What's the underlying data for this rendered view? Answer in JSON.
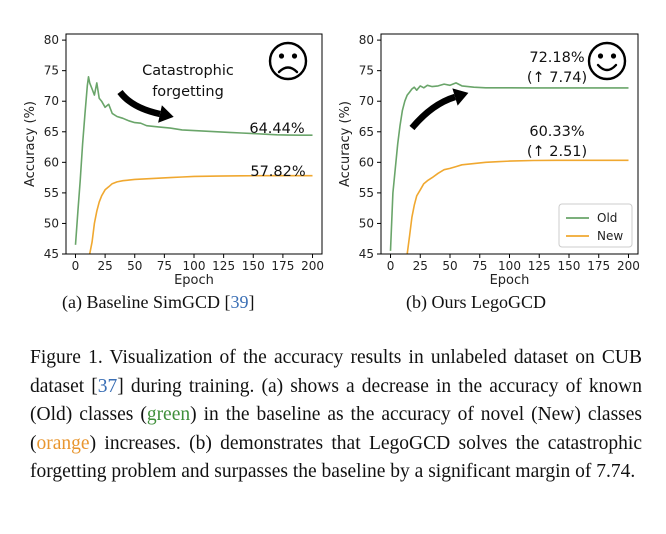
{
  "chart_data": [
    {
      "type": "line",
      "xlabel": "Epoch",
      "ylabel": "Accuracy (%)",
      "xlim": [
        -8,
        208
      ],
      "ylim": [
        45,
        81
      ],
      "xticks": [
        0,
        25,
        50,
        75,
        100,
        125,
        150,
        175,
        200
      ],
      "yticks": [
        45,
        50,
        55,
        60,
        65,
        70,
        75,
        80
      ],
      "grid": false,
      "series": [
        {
          "name": "Old",
          "color": "#6aa56a",
          "x": [
            0,
            2,
            4,
            6,
            8,
            10,
            11,
            12,
            14,
            16,
            18,
            20,
            22,
            25,
            28,
            31,
            35,
            40,
            45,
            50,
            55,
            60,
            70,
            80,
            90,
            100,
            110,
            120,
            130,
            140,
            150,
            160,
            170,
            180,
            190,
            200
          ],
          "y": [
            46.5,
            52,
            57,
            63,
            68,
            72.5,
            74,
            73,
            72,
            71,
            73,
            70.5,
            70,
            69,
            69.5,
            68,
            67.5,
            67.2,
            66.8,
            66.5,
            66.4,
            66,
            65.8,
            65.6,
            65.3,
            65.2,
            65.1,
            65,
            64.9,
            64.8,
            64.7,
            64.6,
            64.5,
            64.45,
            64.44,
            64.44
          ]
        },
        {
          "name": "New",
          "color": "#f0a830",
          "x": [
            12,
            14,
            16,
            18,
            20,
            22,
            25,
            28,
            31,
            35,
            40,
            45,
            50,
            60,
            70,
            80,
            90,
            100,
            120,
            140,
            160,
            180,
            200
          ],
          "y": [
            45,
            47,
            50,
            52,
            53.5,
            54.5,
            55.5,
            56,
            56.5,
            56.8,
            57,
            57.1,
            57.2,
            57.3,
            57.4,
            57.5,
            57.6,
            57.7,
            57.75,
            57.8,
            57.82,
            57.82,
            57.82
          ]
        }
      ],
      "annotations": {
        "old_final": "64.44%",
        "new_final": "57.82%",
        "label_line1": "Catastrophic",
        "label_line2": "forgetting",
        "face": "sad"
      }
    },
    {
      "type": "line",
      "xlabel": "Epoch",
      "ylabel": "Accuracy (%)",
      "xlim": [
        -8,
        208
      ],
      "ylim": [
        45,
        81
      ],
      "xticks": [
        0,
        25,
        50,
        75,
        100,
        125,
        150,
        175,
        200
      ],
      "yticks": [
        45,
        50,
        55,
        60,
        65,
        70,
        75,
        80
      ],
      "grid": false,
      "legend_position": "bottom-right",
      "series": [
        {
          "name": "Old",
          "color": "#6aa56a",
          "x": [
            0,
            2,
            4,
            6,
            8,
            10,
            12,
            14,
            16,
            18,
            20,
            22,
            25,
            28,
            31,
            35,
            40,
            45,
            50,
            55,
            60,
            65,
            70,
            80,
            90,
            100,
            120,
            140,
            160,
            180,
            200
          ],
          "y": [
            45.5,
            55,
            59,
            63,
            66,
            68.5,
            70,
            71,
            71.5,
            72,
            72.3,
            71.8,
            72.5,
            72.2,
            72.6,
            72.4,
            72.5,
            72.8,
            72.6,
            73,
            72.5,
            72.4,
            72.3,
            72.2,
            72.2,
            72.2,
            72.18,
            72.18,
            72.18,
            72.18,
            72.18
          ]
        },
        {
          "name": "New",
          "color": "#f0a830",
          "x": [
            14,
            16,
            18,
            20,
            22,
            25,
            28,
            31,
            35,
            40,
            45,
            50,
            55,
            60,
            70,
            80,
            90,
            100,
            120,
            140,
            160,
            180,
            200
          ],
          "y": [
            45,
            48,
            51,
            53,
            54.5,
            55.5,
            56.5,
            57,
            57.5,
            58.2,
            58.8,
            59,
            59.3,
            59.6,
            59.8,
            60,
            60.1,
            60.2,
            60.3,
            60.33,
            60.33,
            60.33,
            60.33
          ]
        }
      ],
      "annotations": {
        "old_final_line1": "72.18%",
        "old_final_line2": "(↑ 7.74)",
        "new_final_line1": "60.33%",
        "new_final_line2": "(↑ 2.51)",
        "face": "happy"
      }
    }
  ],
  "subcaptions": {
    "a_text": "(a) Baseline SimGCD [",
    "a_ref": "39",
    "a_close": "]",
    "b_text": "(b) Ours LegoGCD"
  },
  "caption": {
    "part1": "Figure 1. Visualization of the accuracy results in unlabeled dataset on CUB dataset [",
    "ref": "37",
    "part2": "] during training. (a) shows a decrease in the accuracy of known (Old) classes (",
    "green_word": "green",
    "part3": ") in the baseline as the accuracy of novel (New) classes (",
    "orange_word": "orange",
    "part4": ") increases. (b) demonstrates that LegoGCD solves the catastrophic forgetting problem and surpasses the baseline by a significant margin of 7.74."
  }
}
